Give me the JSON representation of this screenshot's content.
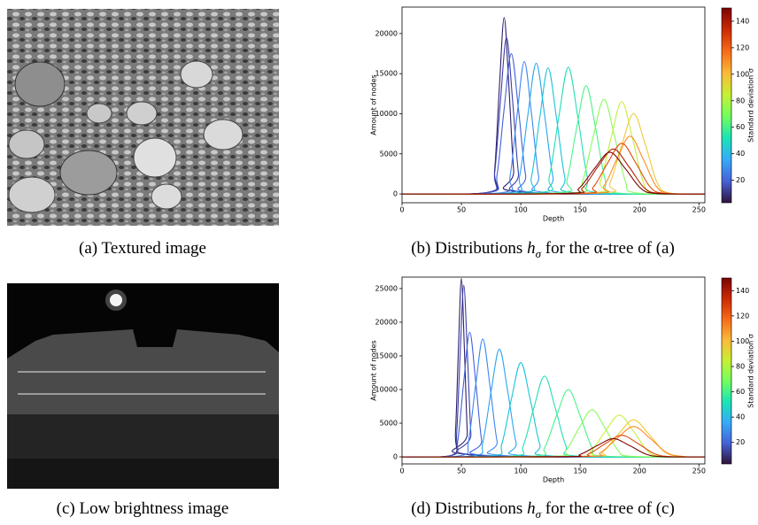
{
  "images": [
    {
      "caption": "(a) Textured image"
    },
    {
      "caption": "(c) Low brightness image"
    }
  ],
  "chart_data": [
    {
      "type": "line",
      "x_label": "Depth",
      "y_label": "Amount of nodes",
      "xlim": [
        0,
        255
      ],
      "ylim": [
        -1100,
        23300
      ],
      "xticks": [
        0,
        50,
        100,
        150,
        200,
        250
      ],
      "yticks": [
        0,
        5000,
        10000,
        15000,
        20000
      ],
      "caption": {
        "prefix": "(b) Distributions ",
        "symbol": "h",
        "subscript": "σ",
        "suffix": " for the α-tree of (a)"
      },
      "colorbar": {
        "label": "Standard deviation σ",
        "clim": [
          3,
          150
        ],
        "ticks": [
          20,
          40,
          60,
          80,
          100,
          120,
          140
        ],
        "colors": [
          "#30123b",
          "#4662d7",
          "#36aaf9",
          "#1ae4b6",
          "#72fe5e",
          "#c7ef34",
          "#faba39",
          "#f66b19",
          "#cb2a04",
          "#7a0403"
        ]
      },
      "series": [
        {
          "color": "#2d1e6e",
          "x": [
            0,
            74,
            78,
            82,
            86,
            90,
            94,
            98,
            255
          ],
          "values": [
            0,
            242,
            2970,
            13354,
            22000,
            13354,
            2970,
            242,
            0
          ]
        },
        {
          "color": "#3b3fa8",
          "x": [
            0,
            73,
            78,
            83,
            88,
            93,
            98,
            103,
            255
          ],
          "values": [
            0,
            215,
            2633,
            11837,
            19500,
            11837,
            2633,
            215,
            0
          ]
        },
        {
          "color": "#4160d8",
          "x": [
            0,
            74,
            80,
            86,
            92,
            98,
            104,
            110,
            255
          ],
          "values": [
            0,
            193,
            2363,
            10623,
            17500,
            10623,
            2363,
            193,
            0
          ]
        },
        {
          "color": "#3e85f2",
          "x": [
            0,
            85,
            91,
            97,
            103,
            109,
            115,
            121,
            255
          ],
          "values": [
            0,
            182,
            2228,
            10016,
            16500,
            10016,
            2228,
            182,
            0
          ]
        },
        {
          "color": "#2aa5f0",
          "x": [
            0,
            92,
            99,
            106,
            113,
            120,
            127,
            134,
            255
          ],
          "values": [
            0,
            179,
            2201,
            9894,
            16300,
            9894,
            2201,
            179,
            0
          ]
        },
        {
          "color": "#19c4d8",
          "x": [
            0,
            102,
            109,
            116,
            123,
            130,
            137,
            144,
            255
          ],
          "values": [
            0,
            173,
            2120,
            9530,
            15700,
            9530,
            2120,
            173,
            0
          ]
        },
        {
          "color": "#22deb2",
          "x": [
            0,
            116,
            124,
            132,
            140,
            148,
            156,
            164,
            255
          ],
          "values": [
            0,
            174,
            2133,
            9591,
            15800,
            9591,
            2133,
            174,
            0
          ]
        },
        {
          "color": "#4af28a",
          "x": [
            0,
            131,
            139,
            147,
            155,
            163,
            171,
            179,
            255
          ],
          "values": [
            0,
            149,
            1823,
            8195,
            13500,
            8195,
            1823,
            149,
            0
          ]
        },
        {
          "color": "#86fb5a",
          "x": [
            0,
            143,
            152,
            161,
            170,
            179,
            188,
            197,
            255
          ],
          "values": [
            0,
            130,
            1593,
            7163,
            11800,
            7163,
            1593,
            130,
            0
          ]
        },
        {
          "color": "#c5ef3a",
          "x": [
            0,
            158,
            167,
            176,
            185,
            194,
            203,
            212,
            255
          ],
          "values": [
            0,
            127,
            1553,
            6981,
            11500,
            6981,
            1553,
            127,
            0
          ]
        },
        {
          "color": "#f3c93a",
          "x": [
            0,
            165,
            175,
            185,
            195,
            205,
            215,
            225,
            255
          ],
          "values": [
            0,
            110,
            1350,
            6070,
            10000,
            6070,
            1350,
            110,
            0
          ]
        },
        {
          "color": "#fb8a22",
          "x": [
            0,
            159,
            170,
            181,
            192,
            203,
            214,
            225,
            255
          ],
          "values": [
            0,
            79,
            972,
            4370,
            7200,
            4370,
            972,
            79,
            0
          ]
        },
        {
          "color": "#e04a0c",
          "x": [
            0,
            149,
            161,
            173,
            185,
            197,
            209,
            221,
            255
          ],
          "values": [
            0,
            69,
            851,
            3824,
            6300,
            3824,
            851,
            69,
            0
          ]
        },
        {
          "color": "#b01f04",
          "x": [
            0,
            139,
            152,
            165,
            178,
            191,
            204,
            217,
            255
          ],
          "values": [
            0,
            62,
            756,
            3399,
            5600,
            3399,
            756,
            62,
            0
          ]
        },
        {
          "color": "#7a0403",
          "x": [
            0,
            136,
            149,
            162,
            175,
            188,
            201,
            214,
            255
          ],
          "values": [
            0,
            57,
            702,
            3156,
            5200,
            3156,
            702,
            57,
            0
          ]
        }
      ]
    },
    {
      "type": "line",
      "x_label": "Depth",
      "y_label": "Amount of nodes",
      "xlim": [
        0,
        255
      ],
      "ylim": [
        -1050,
        26700
      ],
      "xticks": [
        0,
        50,
        100,
        150,
        200,
        250
      ],
      "yticks": [
        0,
        5000,
        10000,
        15000,
        20000,
        25000
      ],
      "caption": {
        "prefix": "(d) Distributions ",
        "symbol": "h",
        "subscript": "σ",
        "suffix": " for the α-tree of (c)"
      },
      "colorbar": {
        "label": "Standard deviation σ",
        "clim": [
          3,
          150
        ],
        "ticks": [
          20,
          40,
          60,
          80,
          100,
          120,
          140
        ],
        "colors": [
          "#30123b",
          "#4662d7",
          "#36aaf9",
          "#1ae4b6",
          "#72fe5e",
          "#c7ef34",
          "#faba39",
          "#f66b19",
          "#cb2a04",
          "#7a0403"
        ]
      },
      "series": [
        {
          "color": "#2d1e6e",
          "x": [
            0,
            42.5,
            45,
            47.5,
            50,
            52.5,
            55,
            57.5,
            255
          ],
          "values": [
            0,
            292,
            3578,
            16086,
            26500,
            16086,
            3578,
            292,
            0
          ]
        },
        {
          "color": "#3b3fa8",
          "x": [
            0,
            43,
            46,
            49,
            52,
            55,
            58,
            61,
            255
          ],
          "values": [
            0,
            281,
            3443,
            15479,
            25500,
            15479,
            3443,
            281,
            0
          ]
        },
        {
          "color": "#4160d8",
          "x": [
            0,
            42,
            47,
            52,
            57,
            62,
            67,
            72,
            255
          ],
          "values": [
            0,
            204,
            2498,
            11230,
            18500,
            11230,
            2498,
            204,
            0
          ]
        },
        {
          "color": "#3e85f2",
          "x": [
            0,
            50,
            56,
            62,
            68,
            74,
            80,
            86,
            255
          ],
          "values": [
            0,
            193,
            2363,
            10623,
            17500,
            10623,
            2363,
            193,
            0
          ]
        },
        {
          "color": "#2aa5f0",
          "x": [
            0,
            61,
            68,
            75,
            82,
            89,
            96,
            103,
            255
          ],
          "values": [
            0,
            176,
            2160,
            9712,
            16000,
            9712,
            2160,
            176,
            0
          ]
        },
        {
          "color": "#19c4d8",
          "x": [
            0,
            76,
            84,
            92,
            100,
            108,
            116,
            124,
            255
          ],
          "values": [
            0,
            154,
            1890,
            8498,
            14000,
            8498,
            1890,
            154,
            0
          ]
        },
        {
          "color": "#22deb2",
          "x": [
            0,
            93,
            102,
            111,
            120,
            129,
            138,
            147,
            255
          ],
          "values": [
            0,
            132,
            1620,
            7284,
            12000,
            7284,
            1620,
            132,
            0
          ]
        },
        {
          "color": "#4af28a",
          "x": [
            0,
            110,
            120,
            130,
            140,
            150,
            160,
            170,
            255
          ],
          "values": [
            0,
            110,
            1350,
            6070,
            10000,
            6070,
            1350,
            110,
            0
          ]
        },
        {
          "color": "#86fb5a",
          "x": [
            0,
            127,
            138,
            149,
            160,
            171,
            182,
            193,
            255
          ],
          "values": [
            0,
            77,
            945,
            4249,
            7000,
            4249,
            945,
            77,
            0
          ]
        },
        {
          "color": "#c5ef3a",
          "x": [
            0,
            147,
            159,
            171,
            183,
            195,
            207,
            219,
            255
          ],
          "values": [
            0,
            68,
            837,
            3763,
            6200,
            3763,
            837,
            68,
            0
          ]
        },
        {
          "color": "#f3c93a",
          "x": [
            0,
            156,
            169,
            182,
            195,
            208,
            221,
            234,
            255
          ],
          "values": [
            0,
            61,
            743,
            3339,
            5500,
            3339,
            743,
            61,
            0
          ]
        },
        {
          "color": "#fb8a22",
          "x": [
            0,
            153,
            167,
            181,
            195,
            209,
            223,
            237,
            255
          ],
          "values": [
            0,
            50,
            608,
            2732,
            4500,
            2732,
            608,
            50,
            0
          ]
        },
        {
          "color": "#e04a0c",
          "x": [
            0,
            143,
            157,
            171,
            185,
            199,
            213,
            227,
            255
          ],
          "values": [
            0,
            35,
            432,
            1942,
            3200,
            1942,
            432,
            35,
            0
          ]
        },
        {
          "color": "#7a0403",
          "x": [
            0,
            136,
            150,
            164,
            178,
            192,
            206,
            220,
            255
          ],
          "values": [
            0,
            30,
            365,
            1639,
            2700,
            1639,
            365,
            30,
            0
          ]
        }
      ]
    }
  ]
}
